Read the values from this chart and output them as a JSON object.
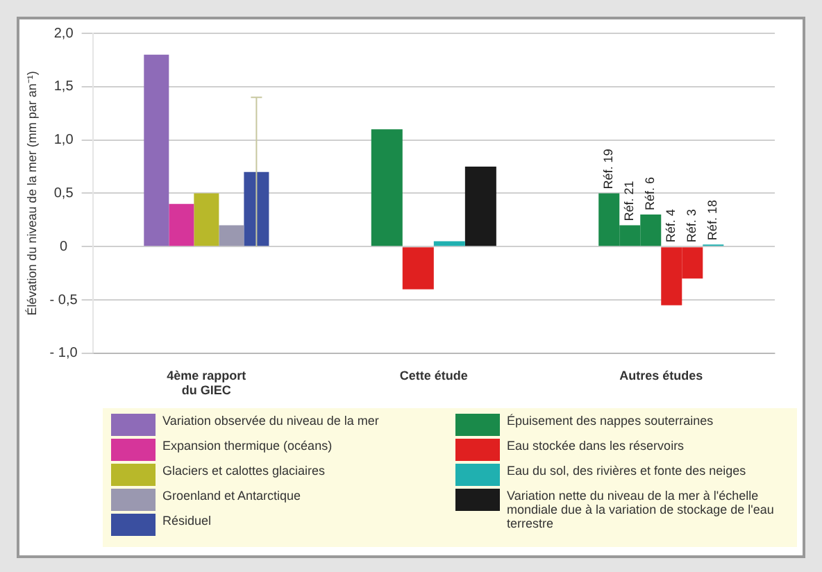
{
  "chart_data": {
    "type": "bar",
    "ylabel": "Élévation du niveau de la mer (mm par an⁻¹)",
    "categories": [
      "4ème rapport du GIEC",
      "Cette étude",
      "Autres études"
    ],
    "ylim": [
      -1,
      2
    ],
    "yticks": [
      {
        "value": 2,
        "label": "2,0"
      },
      {
        "value": 1.5,
        "label": "1,5"
      },
      {
        "value": 1,
        "label": "1,0"
      },
      {
        "value": 0.5,
        "label": "0,5"
      },
      0,
      {
        "value": -0.5,
        "label": "- 0,5"
      },
      {
        "value": -1,
        "label": "- 1,0"
      }
    ],
    "grid": "y",
    "legend": "bottom",
    "annotations": [
      "Réf. 19",
      "Réf. 21",
      "Réf. 6",
      "Réf. 4",
      "Réf. 3",
      "Réf. 18"
    ],
    "series": [
      {
        "name": "Variation observée du niveau de la mer",
        "color": "#8e6bb8",
        "values": [
          1.8,
          null,
          null
        ]
      },
      {
        "name": "Expansion thermique (océans)",
        "color": "#d6359a",
        "values": [
          0.4,
          null,
          null
        ]
      },
      {
        "name": "Glaciers et calottes glaciaires",
        "color": "#b8b82a",
        "values": [
          0.5,
          null,
          null
        ]
      },
      {
        "name": "Groenland et Antarctique",
        "color": "#9a98b0",
        "values": [
          0.2,
          null,
          null
        ]
      },
      {
        "name": "Résiduel",
        "color": "#3a4fa0",
        "values": [
          0.7,
          null,
          null
        ],
        "errors": [
          0.7,
          null,
          null
        ]
      },
      {
        "name": "Épuisement des nappes souterraines",
        "color": "#1a8a4a",
        "values": [
          null,
          1.1,
          0.5
        ]
      },
      {
        "color": "#1a8a4a",
        "values": [
          null,
          null,
          0.2
        ]
      },
      {
        "color": "#1a8a4a",
        "values": [
          null,
          null,
          0.3
        ]
      },
      {
        "name": "Eau stockée dans les réservoirs",
        "color": "#e02020",
        "values": [
          null,
          -0.4,
          -0.55
        ]
      },
      {
        "color": "#e02020",
        "values": [
          null,
          null,
          -0.3
        ]
      },
      {
        "name": "Eau du sol, des rivières et fonte des neiges",
        "color": "#20b0b0",
        "values": [
          null,
          0.05,
          0.02
        ]
      },
      {
        "name": "Variation nette du niveau de la mer à l'échelle mondiale due à la variation de stockage de l'eau terrestre",
        "color": "#1a1a1a",
        "values": [
          null,
          0.75,
          null
        ]
      }
    ]
  }
}
